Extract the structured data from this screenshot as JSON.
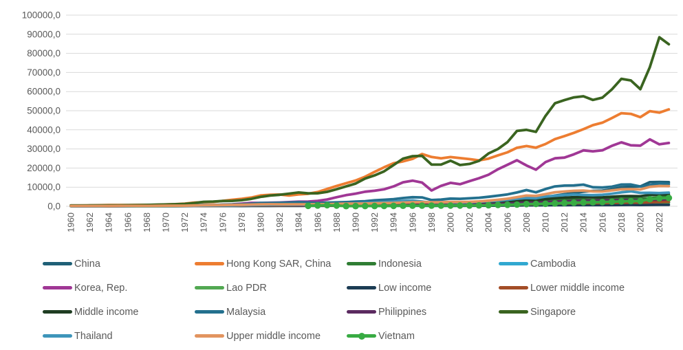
{
  "chart_data": {
    "type": "line",
    "title": "",
    "xlabel": "",
    "ylabel": "",
    "ylim": [
      0,
      100000
    ],
    "year_start": 1960,
    "year_end": 2023,
    "grid": "horizontal",
    "grid_color": "#D9D9D9",
    "axis_text_color": "#595959",
    "legend_position": "bottom",
    "y_ticks": [
      0,
      10000,
      20000,
      30000,
      40000,
      50000,
      60000,
      70000,
      80000,
      90000,
      100000
    ],
    "y_tick_labels": [
      "0,0",
      "10000,0",
      "20000,0",
      "30000,0",
      "40000,0",
      "50000,0",
      "60000,0",
      "70000,0",
      "80000,0",
      "90000,0",
      "100000,0"
    ],
    "x_tick_labels": [
      "1960",
      "1962",
      "1964",
      "1966",
      "1968",
      "1970",
      "1972",
      "1974",
      "1976",
      "1978",
      "1980",
      "1982",
      "1984",
      "1986",
      "1988",
      "1990",
      "1992",
      "1994",
      "1996",
      "1998",
      "2000",
      "2002",
      "2004",
      "2006",
      "2008",
      "2010",
      "2012",
      "2014",
      "2016",
      "2018",
      "2020",
      "2022"
    ],
    "series": [
      {
        "name": "China",
        "color": "#1F6077",
        "marker": "none",
        "values": [
          90,
          76,
          71,
          74,
          85,
          98,
          104,
          97,
          91,
          100,
          113,
          119,
          132,
          157,
          160,
          178,
          165,
          185,
          156,
          184,
          195,
          197,
          203,
          225,
          250,
          294,
          282,
          301,
          370,
          408,
          318,
          333,
          366,
          377,
          473,
          610,
          709,
          782,
          829,
          873,
          959,
          1053,
          1149,
          1289,
          1509,
          1753,
          2099,
          2694,
          3468,
          3832,
          4550,
          5614,
          6301,
          7020,
          7679,
          8067,
          8148,
          8879,
          9977,
          10217,
          10409,
          12618,
          12720,
          12614
        ]
      },
      {
        "name": "Hong Kong SAR, China",
        "color": "#ED7D31",
        "marker": "none",
        "values": [
          429,
          437,
          488,
          566,
          630,
          677,
          686,
          723,
          715,
          794,
          960,
          1106,
          1385,
          1893,
          2144,
          2252,
          2850,
          3429,
          3924,
          4569,
          5700,
          5991,
          6134,
          5595,
          6208,
          6542,
          7435,
          9071,
          10610,
          12098,
          13486,
          15466,
          17976,
          20396,
          22503,
          23497,
          24818,
          27330,
          25809,
          25092,
          25757,
          25230,
          24666,
          23977,
          24928,
          26650,
          28224,
          30594,
          31516,
          30697,
          32550,
          35142,
          36731,
          38404,
          40315,
          42431,
          43731,
          46166,
          48717,
          48354,
          46611,
          49800,
          48984,
          50697
        ]
      },
      {
        "name": "Indonesia",
        "color": "#2F7D33",
        "marker": "none",
        "values": [
          62,
          53,
          32,
          28,
          23,
          27,
          32,
          54,
          70,
          78,
          79,
          82,
          93,
          127,
          204,
          233,
          278,
          334,
          364,
          376,
          673,
          801,
          822,
          673,
          701,
          656,
          620,
          560,
          598,
          671,
          770,
          836,
          897,
          1057,
          1150,
          1254,
          1370,
          1301,
          613,
          829,
          870,
          845,
          991,
          1166,
          1281,
          1404,
          1765,
          2064,
          2300,
          2465,
          3122,
          3643,
          3701,
          3668,
          3477,
          3323,
          3605,
          3838,
          3902,
          4135,
          3895,
          4334,
          4788,
          4940
        ]
      },
      {
        "name": "Cambodia",
        "color": "#31A8D0",
        "marker": "none",
        "values": [
          111,
          115,
          117,
          122,
          127,
          130,
          136,
          141,
          147,
          152,
          155,
          null,
          null,
          null,
          null,
          null,
          null,
          null,
          null,
          null,
          null,
          null,
          null,
          null,
          null,
          null,
          null,
          null,
          null,
          null,
          null,
          null,
          null,
          253,
          266,
          321,
          313,
          303,
          268,
          293,
          299,
          320,
          337,
          357,
          407,
          472,
          536,
          628,
          711,
          735,
          786,
          882,
          950,
          1010,
          1093,
          1163,
          1270,
          1385,
          1512,
          1643,
          1577,
          1591,
          1787,
          1875
        ]
      },
      {
        "name": "Korea, Rep.",
        "color": "#A03795",
        "marker": "none",
        "values": [
          158,
          94,
          106,
          146,
          124,
          109,
          133,
          161,
          198,
          243,
          279,
          301,
          324,
          406,
          563,
          617,
          834,
          1056,
          1406,
          1784,
          1715,
          1883,
          1992,
          2198,
          2413,
          2482,
          2835,
          3555,
          4754,
          5817,
          6610,
          7637,
          8127,
          8882,
          10385,
          12565,
          13403,
          12398,
          8271,
          10672,
          12257,
          11561,
          13165,
          14673,
          16496,
          19403,
          21743,
          24086,
          21350,
          19144,
          23087,
          25100,
          25467,
          27183,
          29250,
          28732,
          29274,
          31601,
          33447,
          31902,
          31721,
          34998,
          32423,
          33121
        ]
      },
      {
        "name": "Lao PDR",
        "color": "#52A852",
        "marker": "none",
        "values": [
          null,
          null,
          null,
          null,
          null,
          null,
          null,
          null,
          null,
          null,
          null,
          null,
          null,
          null,
          null,
          null,
          null,
          null,
          null,
          null,
          null,
          null,
          null,
          null,
          517,
          478,
          443,
          346,
          202,
          206,
          203,
          231,
          245,
          269,
          301,
          363,
          381,
          395,
          253,
          281,
          325,
          326,
          330,
          362,
          418,
          474,
          591,
          711,
          900,
          948,
          1141,
          1381,
          1581,
          1826,
          1998,
          2135,
          2339,
          2457,
          2567,
          2625,
          2630,
          2551,
          2054,
          1945
        ]
      },
      {
        "name": "Low income",
        "color": "#1C3C54",
        "marker": "none",
        "values": [
          105,
          108,
          110,
          113,
          116,
          120,
          123,
          126,
          130,
          134,
          138,
          144,
          152,
          168,
          195,
          210,
          222,
          238,
          255,
          275,
          295,
          300,
          295,
          285,
          280,
          275,
          285,
          300,
          315,
          325,
          345,
          330,
          310,
          295,
          270,
          285,
          295,
          300,
          290,
          280,
          268,
          262,
          270,
          290,
          320,
          355,
          395,
          445,
          505,
          520,
          555,
          595,
          620,
          640,
          660,
          640,
          630,
          655,
          690,
          710,
          700,
          715,
          740,
          755
        ]
      },
      {
        "name": "Lower middle income",
        "color": "#A34D27",
        "marker": "none",
        "values": [
          107,
          110,
          112,
          115,
          119,
          123,
          126,
          129,
          134,
          140,
          146,
          152,
          162,
          185,
          225,
          250,
          270,
          295,
          320,
          355,
          390,
          400,
          395,
          385,
          380,
          375,
          385,
          400,
          420,
          435,
          455,
          440,
          435,
          430,
          445,
          490,
          520,
          530,
          510,
          505,
          520,
          515,
          525,
          560,
          630,
          710,
          790,
          900,
          1050,
          1080,
          1280,
          1440,
          1530,
          1590,
          1650,
          1640,
          1680,
          1780,
          1870,
          1950,
          1890,
          2080,
          2280,
          2420
        ]
      },
      {
        "name": "Middle income",
        "color": "#1F3D22",
        "marker": "none",
        "values": [
          142,
          138,
          140,
          146,
          155,
          165,
          172,
          176,
          183,
          194,
          205,
          218,
          240,
          290,
          360,
          400,
          430,
          470,
          510,
          580,
          645,
          680,
          670,
          650,
          645,
          640,
          650,
          680,
          730,
          770,
          810,
          830,
          870,
          920,
          960,
          1080,
          1160,
          1190,
          1130,
          1150,
          1210,
          1210,
          1250,
          1380,
          1590,
          1850,
          2130,
          2560,
          3030,
          3080,
          3700,
          4280,
          4540,
          4750,
          4870,
          4680,
          4660,
          4960,
          5270,
          5350,
          5250,
          5950,
          6120,
          6230
        ]
      },
      {
        "name": "Malaysia",
        "color": "#23708E",
        "marker": "none",
        "values": [
          235,
          227,
          231,
          278,
          287,
          313,
          324,
          317,
          323,
          346,
          358,
          375,
          422,
          570,
          725,
          715,
          819,
          933,
          1083,
          1346,
          1775,
          1769,
          1852,
          1962,
          2142,
          1980,
          1702,
          1894,
          2044,
          2188,
          2442,
          2654,
          3113,
          3433,
          3728,
          4330,
          4766,
          4638,
          3263,
          3493,
          4044,
          3913,
          4166,
          4463,
          4952,
          5587,
          6209,
          7243,
          8475,
          7292,
          9041,
          10399,
          10817,
          10882,
          11319,
          9955,
          9818,
          10259,
          11380,
          11414,
          10362,
          11109,
          11972,
          11649
        ]
      },
      {
        "name": "Philippines",
        "color": "#5B2A60",
        "marker": "none",
        "values": [
          263,
          278,
          168,
          181,
          185,
          195,
          204,
          209,
          225,
          235,
          199,
          205,
          216,
          259,
          341,
          366,
          412,
          456,
          514,
          597,
          762,
          791,
          796,
          716,
          658,
          625,
          594,
          640,
          715,
          787,
          806,
          801,
          874,
          886,
          1004,
          1222,
          1322,
          1274,
          1009,
          1135,
          1087,
          991,
          1036,
          1048,
          1121,
          1245,
          1452,
          1745,
          1991,
          1905,
          2294,
          2487,
          2694,
          2871,
          2996,
          3001,
          3154,
          3153,
          3280,
          3414,
          3224,
          3461,
          3499,
          3726
        ]
      },
      {
        "name": "Singapore",
        "color": "#3A6420",
        "marker": "none",
        "values": [
          428,
          449,
          472,
          511,
          485,
          516,
          566,
          626,
          708,
          812,
          926,
          1071,
          1264,
          1685,
          2341,
          2490,
          2759,
          2845,
          3194,
          3901,
          4928,
          5597,
          6018,
          6633,
          7228,
          6754,
          6799,
          7539,
          8914,
          10395,
          11862,
          14502,
          16136,
          18290,
          21552,
          24914,
          26233,
          26376,
          21829,
          21796,
          23852,
          21577,
          22160,
          23730,
          27608,
          29961,
          33579,
          39432,
          40008,
          38927,
          47237,
          53890,
          55546,
          56967,
          57562,
          55646,
          56828,
          61150,
          66679,
          65831,
          61274,
          72794,
          88429,
          84734
        ]
      },
      {
        "name": "Thailand",
        "color": "#3E95BA",
        "marker": "none",
        "values": [
          101,
          107,
          113,
          120,
          127,
          138,
          161,
          167,
          174,
          185,
          192,
          191,
          209,
          262,
          325,
          352,
          392,
          445,
          526,
          590,
          683,
          721,
          742,
          798,
          818,
          748,
          813,
          937,
          1123,
          1295,
          1509,
          1716,
          1927,
          2209,
          2491,
          2847,
          3044,
          2468,
          1846,
          2033,
          2008,
          1893,
          2096,
          2359,
          2660,
          2894,
          3370,
          3973,
          4379,
          4213,
          5076,
          5492,
          5861,
          6168,
          5952,
          5840,
          5993,
          6594,
          7296,
          7817,
          7002,
          7066,
          6909,
          7172
        ]
      },
      {
        "name": "Upper middle income",
        "color": "#E2945F",
        "marker": "none",
        "values": [
          180,
          170,
          165,
          175,
          190,
          205,
          215,
          220,
          230,
          250,
          270,
          295,
          330,
          420,
          540,
          600,
          650,
          720,
          790,
          900,
          1020,
          1080,
          1060,
          1030,
          1040,
          1060,
          1090,
          1130,
          1260,
          1350,
          1390,
          1450,
          1540,
          1660,
          1740,
          1950,
          2080,
          2160,
          2090,
          2090,
          2250,
          2280,
          2330,
          2560,
          2960,
          3410,
          3960,
          4790,
          5620,
          5430,
          6320,
          7330,
          7740,
          8080,
          8240,
          7820,
          7740,
          8300,
          8890,
          9010,
          8820,
          10180,
          10610,
          10540
        ]
      },
      {
        "name": "Vietnam",
        "color": "#38AB43",
        "marker": "circle",
        "values": [
          null,
          null,
          null,
          null,
          null,
          null,
          null,
          null,
          null,
          null,
          null,
          null,
          null,
          null,
          null,
          null,
          null,
          null,
          null,
          null,
          null,
          null,
          null,
          null,
          null,
          239,
          437,
          584,
          397,
          97,
          98,
          138,
          144,
          189,
          229,
          288,
          337,
          361,
          361,
          374,
          390,
          405,
          430,
          480,
          542,
          687,
          784,
          906,
          1149,
          1217,
          1318,
          1525,
          1735,
          1871,
          2012,
          2085,
          2192,
          2366,
          2566,
          2715,
          2786,
          3694,
          4164,
          4347
        ]
      }
    ]
  }
}
